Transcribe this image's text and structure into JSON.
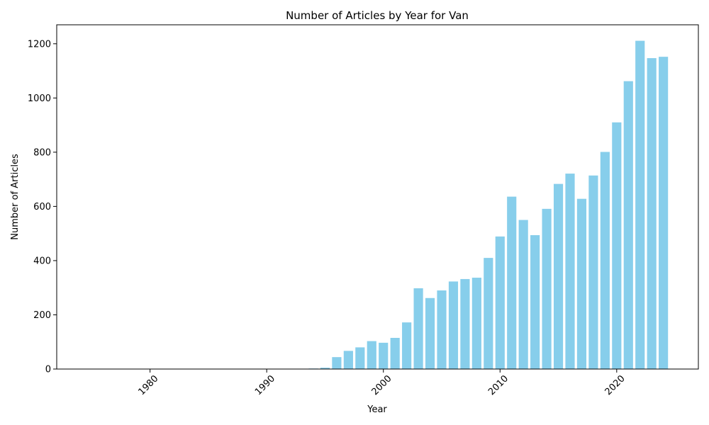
{
  "chart_data": {
    "type": "bar",
    "title": "Number of Articles by Year for Van",
    "xlabel": "Year",
    "ylabel": "Number of Articles",
    "bar_color": "#87ceeb",
    "xlim": [
      1972,
      2027
    ],
    "ylim": [
      0,
      1270
    ],
    "xticks": [
      1980,
      1990,
      2000,
      2010,
      2020
    ],
    "yticks": [
      0,
      200,
      400,
      600,
      800,
      1000,
      1200
    ],
    "grid": false,
    "legend": false,
    "x": [
      1975,
      1979,
      1985,
      1991,
      1992,
      1993,
      1994,
      1995,
      1996,
      1997,
      1998,
      1999,
      2000,
      2001,
      2002,
      2003,
      2004,
      2005,
      2006,
      2007,
      2008,
      2009,
      2010,
      2011,
      2012,
      2013,
      2014,
      2015,
      2016,
      2017,
      2018,
      2019,
      2020,
      2021,
      2022,
      2023,
      2024
    ],
    "values": [
      1,
      1,
      1,
      1,
      1,
      1,
      2,
      5,
      44,
      67,
      80,
      103,
      97,
      115,
      172,
      298,
      262,
      290,
      323,
      332,
      337,
      410,
      489,
      636,
      550,
      494,
      591,
      683,
      721,
      628,
      714,
      801,
      910,
      1062,
      1211,
      1147,
      1152
    ]
  }
}
